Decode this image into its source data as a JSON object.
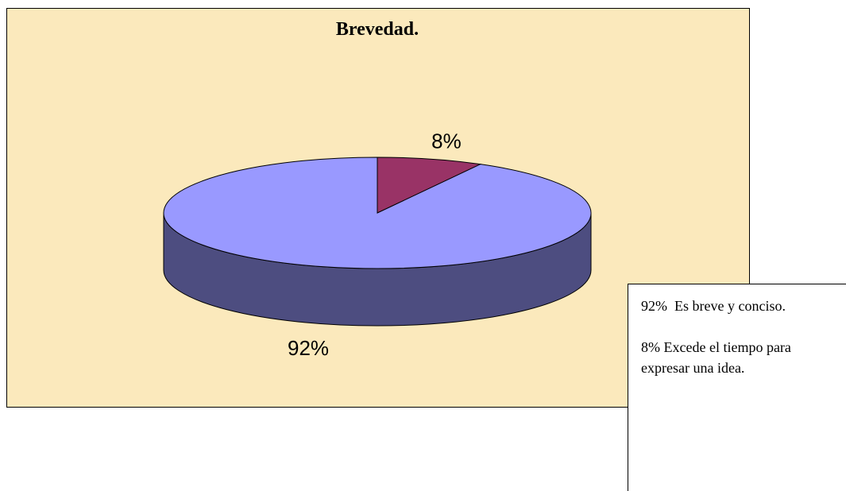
{
  "chart_data": {
    "type": "pie",
    "title": "Brevedad.",
    "values": [
      92,
      8
    ],
    "value_labels": [
      "92%",
      "8%"
    ],
    "colors": [
      "#9999ff",
      "#993366"
    ],
    "background": "#fbe9bc"
  },
  "note": [
    "92%  Es breve y conciso.",
    "8% Excede el tiempo para expresar una idea."
  ]
}
